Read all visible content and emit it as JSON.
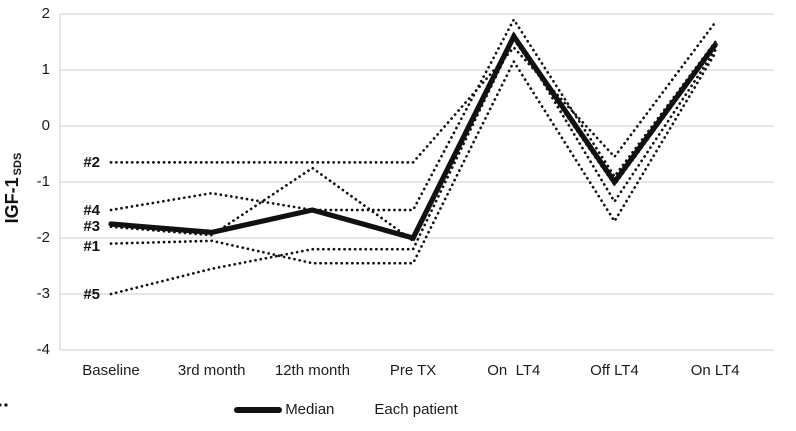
{
  "figure": {
    "y_axis": {
      "title_main": "IGF-1",
      "title_sub": "SDS",
      "ticks": [
        2,
        1,
        0,
        -1,
        -2,
        -3,
        -4
      ]
    },
    "x_axis": {
      "categories": [
        "Baseline",
        "3rd month",
        "12th month",
        "Pre TX",
        "On  LT4",
        "Off LT4",
        "On LT4"
      ]
    },
    "patient_labels": [
      {
        "label": "#2",
        "value": -0.65
      },
      {
        "label": "#4",
        "value": -1.5
      },
      {
        "label": "#3",
        "value": -1.78
      },
      {
        "label": "#1",
        "value": -2.15
      },
      {
        "label": "#5",
        "value": -3.0
      }
    ],
    "legend": {
      "median_label": "Median",
      "each_patient_label": "Each patient"
    }
  },
  "chart_data": {
    "type": "line",
    "title": "",
    "xlabel": "",
    "ylabel": "IGF-1 SDS",
    "ylim": [
      -4,
      2
    ],
    "yticks": [
      2,
      1,
      0,
      -1,
      -2,
      -3,
      -4
    ],
    "grid": true,
    "legend_position": "bottom",
    "categories": [
      "Baseline",
      "3rd month",
      "12th month",
      "Pre TX",
      "On  LT4",
      "Off LT4",
      "On LT4"
    ],
    "series": [
      {
        "name": "#2",
        "style": "dotted",
        "values": [
          -0.65,
          -0.65,
          -0.65,
          -0.65,
          1.4,
          -0.55,
          1.85
        ]
      },
      {
        "name": "#4",
        "style": "dotted",
        "values": [
          -1.5,
          -1.2,
          -1.5,
          -1.5,
          1.9,
          -0.9,
          1.5
        ]
      },
      {
        "name": "#3",
        "style": "dotted",
        "values": [
          -1.8,
          -1.95,
          -0.75,
          -2.05,
          1.65,
          -1.35,
          1.35
        ]
      },
      {
        "name": "#1",
        "style": "dotted",
        "values": [
          -2.1,
          -2.05,
          -2.45,
          -2.45,
          1.15,
          -1.7,
          1.3
        ]
      },
      {
        "name": "#5",
        "style": "dotted",
        "values": [
          -3.0,
          -2.55,
          -2.2,
          -2.2,
          1.55,
          -1.05,
          1.42
        ]
      },
      {
        "name": "Median",
        "style": "solid",
        "values": [
          -1.75,
          -1.9,
          -1.5,
          -2.0,
          1.6,
          -1.0,
          1.45
        ]
      }
    ]
  },
  "colors": {
    "line": "#111111",
    "grid": "#cccccc",
    "text": "#1a1a1a",
    "background": "#ffffff"
  }
}
